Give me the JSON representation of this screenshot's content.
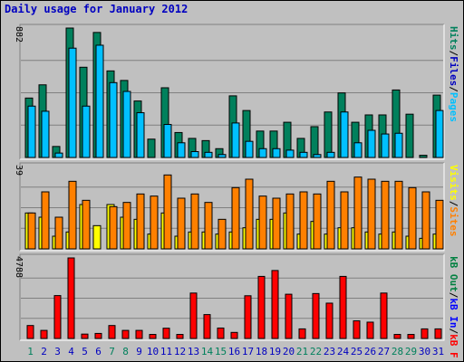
{
  "title": "Daily usage for January 2012",
  "colors": {
    "background": "#c0c0c0",
    "title": "#0000c0",
    "hits": "#00805c",
    "files": "#00c0ff",
    "sites": "#ff8000",
    "visits": "#ffff00",
    "kbin": "#0000ff",
    "kbout": "#008040",
    "kbf": "#ff0000",
    "weekend_label": "#00805c",
    "weekday_label": "#0000c0",
    "grid": "#808080"
  },
  "chart_data": [
    {
      "type": "bar",
      "title": "Daily usage for January 2012",
      "panel": "hits-files-pages",
      "ymax_label": "882",
      "ylim": [
        0,
        882
      ],
      "categories": [
        "1",
        "2",
        "3",
        "4",
        "5",
        "6",
        "7",
        "8",
        "9",
        "10",
        "11",
        "12",
        "13",
        "14",
        "15",
        "16",
        "17",
        "18",
        "19",
        "20",
        "21",
        "22",
        "23",
        "24",
        "25",
        "26",
        "27",
        "28",
        "29",
        "30",
        "31"
      ],
      "legend": [
        {
          "key": "pages",
          "label": "Pages",
          "color": "#00c0ff"
        },
        {
          "key": "sep1",
          "label": "/",
          "color": "#000000"
        },
        {
          "key": "files",
          "label": "Files",
          "color": "#0000c0"
        },
        {
          "key": "sep2",
          "label": "/",
          "color": "#000000"
        },
        {
          "key": "hits",
          "label": "Hits",
          "color": "#00805c"
        }
      ],
      "series": [
        {
          "name": "Hits",
          "values": [
            405,
            495,
            75,
            882,
            615,
            852,
            590,
            525,
            385,
            125,
            475,
            170,
            130,
            115,
            60,
            420,
            320,
            180,
            180,
            240,
            130,
            210,
            310,
            440,
            240,
            290,
            290,
            460,
            295,
            15,
            425
          ]
        },
        {
          "name": "Files",
          "values": [
            350,
            315,
            30,
            745,
            350,
            765,
            510,
            450,
            305,
            0,
            225,
            100,
            40,
            35,
            20,
            235,
            110,
            60,
            60,
            50,
            35,
            20,
            35,
            310,
            100,
            185,
            160,
            165,
            0,
            0,
            320
          ]
        }
      ]
    },
    {
      "type": "bar",
      "panel": "visits-sites",
      "ymax_label": "39",
      "ylim": [
        0,
        39
      ],
      "categories": [
        "1",
        "2",
        "3",
        "4",
        "5",
        "6",
        "7",
        "8",
        "9",
        "10",
        "11",
        "12",
        "13",
        "14",
        "15",
        "16",
        "17",
        "18",
        "19",
        "20",
        "21",
        "22",
        "23",
        "24",
        "25",
        "26",
        "27",
        "28",
        "29",
        "30",
        "31"
      ],
      "legend": [
        {
          "key": "sites",
          "label": "Sites",
          "color": "#ff8000"
        },
        {
          "key": "sep1",
          "label": "/",
          "color": "#000000"
        },
        {
          "key": "visits",
          "label": "Visits",
          "color": "#ffff00"
        }
      ],
      "series": [
        {
          "name": "Visits",
          "values": [
            17,
            15,
            6,
            8,
            21,
            11,
            21,
            15,
            14,
            7,
            17,
            6,
            8,
            8,
            7,
            8,
            10,
            14,
            14,
            17,
            7,
            13,
            7,
            10,
            10,
            8,
            7,
            8,
            6,
            5,
            7
          ]
        },
        {
          "name": "Sites",
          "values": [
            17,
            27,
            15,
            32,
            23,
            0,
            20,
            22,
            26,
            25,
            35,
            24,
            26,
            22,
            14,
            29,
            33,
            25,
            24,
            26,
            27,
            26,
            32,
            27,
            34,
            33,
            32,
            32,
            29,
            27,
            23
          ]
        }
      ]
    },
    {
      "type": "bar",
      "panel": "kbf-kbin-kbout",
      "ymax_label": "4788",
      "ylim": [
        0,
        4788
      ],
      "categories": [
        "1",
        "2",
        "3",
        "4",
        "5",
        "6",
        "7",
        "8",
        "9",
        "10",
        "11",
        "12",
        "13",
        "14",
        "15",
        "16",
        "17",
        "18",
        "19",
        "20",
        "21",
        "22",
        "23",
        "24",
        "25",
        "26",
        "27",
        "28",
        "29",
        "30",
        "31"
      ],
      "legend": [
        {
          "key": "kbf",
          "label": "kB F",
          "color": "#ff0000"
        },
        {
          "key": "sep1",
          "label": "/",
          "color": "#000000"
        },
        {
          "key": "kbin",
          "label": "kB In",
          "color": "#0000ff"
        },
        {
          "key": "sep2",
          "label": "/",
          "color": "#000000"
        },
        {
          "key": "kbout",
          "label": "kB Out",
          "color": "#008040"
        }
      ],
      "series": [
        {
          "name": "kB F",
          "values": [
            770,
            480,
            2550,
            4788,
            260,
            300,
            770,
            480,
            480,
            240,
            610,
            240,
            2700,
            1420,
            620,
            360,
            2540,
            3690,
            4040,
            2630,
            570,
            2670,
            2100,
            3690,
            1050,
            970,
            2700,
            240,
            240,
            570,
            570
          ]
        }
      ]
    }
  ],
  "x_labels": [
    {
      "text": "1",
      "weekend": true
    },
    {
      "text": "2",
      "weekend": false
    },
    {
      "text": "3",
      "weekend": false
    },
    {
      "text": "4",
      "weekend": false
    },
    {
      "text": "5",
      "weekend": false
    },
    {
      "text": "6",
      "weekend": false
    },
    {
      "text": "7",
      "weekend": true
    },
    {
      "text": "8",
      "weekend": true
    },
    {
      "text": "9",
      "weekend": false
    },
    {
      "text": "10",
      "weekend": false
    },
    {
      "text": "11",
      "weekend": false
    },
    {
      "text": "12",
      "weekend": false
    },
    {
      "text": "13",
      "weekend": false
    },
    {
      "text": "14",
      "weekend": true
    },
    {
      "text": "15",
      "weekend": true
    },
    {
      "text": "16",
      "weekend": false
    },
    {
      "text": "17",
      "weekend": false
    },
    {
      "text": "18",
      "weekend": false
    },
    {
      "text": "19",
      "weekend": false
    },
    {
      "text": "20",
      "weekend": false
    },
    {
      "text": "21",
      "weekend": true
    },
    {
      "text": "22",
      "weekend": true
    },
    {
      "text": "23",
      "weekend": false
    },
    {
      "text": "24",
      "weekend": false
    },
    {
      "text": "25",
      "weekend": false
    },
    {
      "text": "26",
      "weekend": false
    },
    {
      "text": "27",
      "weekend": false
    },
    {
      "text": "28",
      "weekend": true
    },
    {
      "text": "29",
      "weekend": true
    },
    {
      "text": "30",
      "weekend": false
    },
    {
      "text": "31",
      "weekend": false
    }
  ]
}
